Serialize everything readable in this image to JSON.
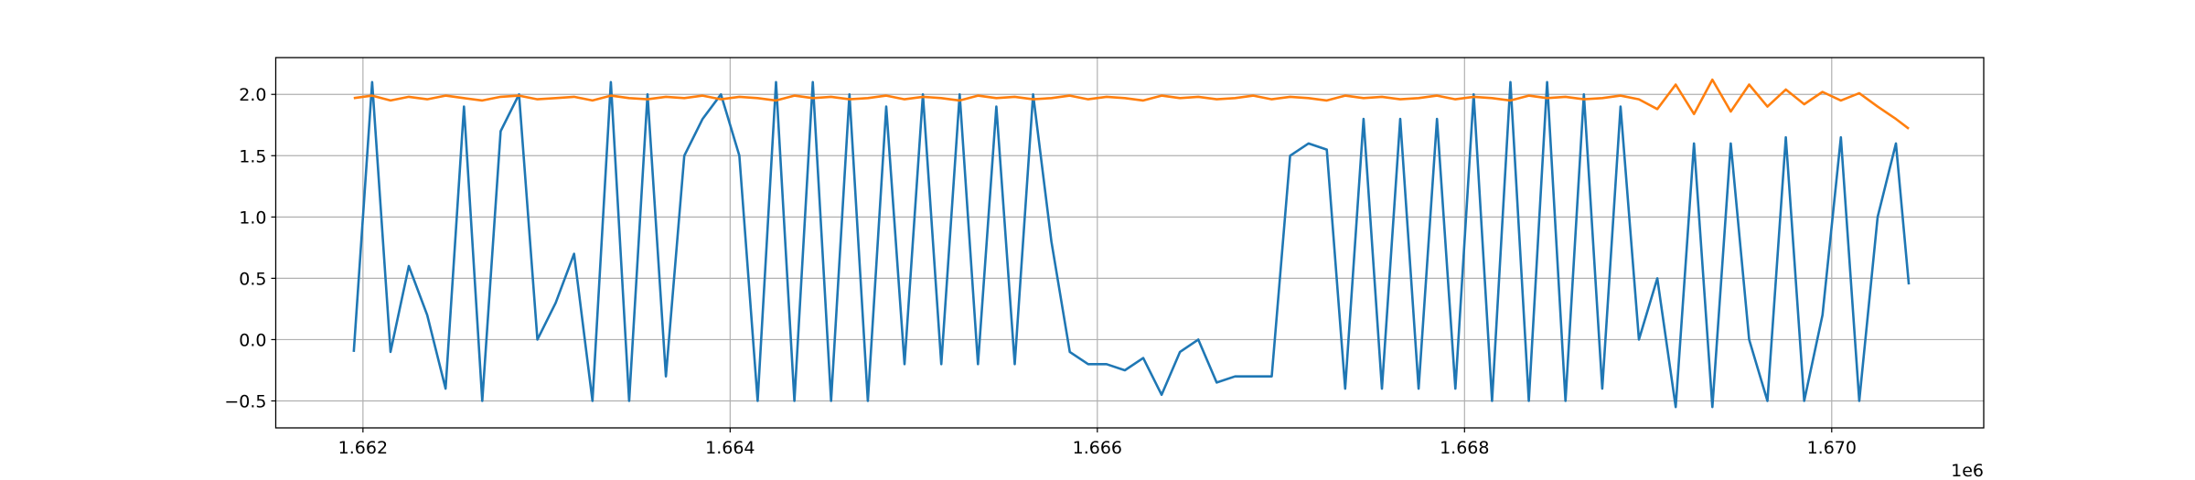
{
  "chart_data": {
    "type": "line",
    "x": [
      1661950,
      1662050,
      1662150,
      1662250,
      1662350,
      1662450,
      1662550,
      1662650,
      1662750,
      1662850,
      1662950,
      1663050,
      1663150,
      1663250,
      1663350,
      1663450,
      1663550,
      1663650,
      1663750,
      1663850,
      1663950,
      1664050,
      1664150,
      1664250,
      1664350,
      1664450,
      1664550,
      1664650,
      1664750,
      1664850,
      1664950,
      1665050,
      1665150,
      1665250,
      1665350,
      1665450,
      1665550,
      1665650,
      1665750,
      1665850,
      1665950,
      1666050,
      1666150,
      1666250,
      1666350,
      1666450,
      1666550,
      1666650,
      1666750,
      1666850,
      1666950,
      1667050,
      1667150,
      1667250,
      1667350,
      1667450,
      1667550,
      1667650,
      1667750,
      1667850,
      1667950,
      1668050,
      1668150,
      1668250,
      1668350,
      1668450,
      1668550,
      1668650,
      1668750,
      1668850,
      1668950,
      1669050,
      1669150,
      1669250,
      1669350,
      1669450,
      1669550,
      1669650,
      1669750,
      1669850,
      1669950,
      1670050,
      1670150,
      1670250,
      1670350,
      1670420
    ],
    "series": [
      {
        "color": "#1f77b4",
        "values": [
          -0.1,
          2.1,
          -0.1,
          0.6,
          0.2,
          -0.4,
          1.9,
          -0.5,
          1.7,
          2.0,
          0.0,
          0.3,
          0.7,
          -0.5,
          2.1,
          -0.5,
          2.0,
          -0.3,
          1.5,
          1.8,
          2.0,
          1.5,
          -0.5,
          2.1,
          -0.5,
          2.1,
          -0.5,
          2.0,
          -0.5,
          1.9,
          -0.2,
          2.0,
          -0.2,
          2.0,
          -0.2,
          1.9,
          -0.2,
          2.0,
          0.8,
          -0.1,
          -0.2,
          -0.2,
          -0.25,
          -0.15,
          -0.45,
          -0.1,
          0.0,
          -0.35,
          -0.3,
          -0.3,
          -0.3,
          1.5,
          1.6,
          1.55,
          -0.4,
          1.8,
          -0.4,
          1.8,
          -0.4,
          1.8,
          -0.4,
          2.0,
          -0.5,
          2.1,
          -0.5,
          2.1,
          -0.5,
          2.0,
          -0.4,
          1.9,
          0.0,
          0.5,
          -0.55,
          1.6,
          -0.55,
          1.6,
          0.0,
          -0.5,
          1.65,
          -0.5,
          0.2,
          1.65,
          -0.5,
          1.0,
          1.6,
          0.45
        ]
      },
      {
        "color": "#ff7f0e",
        "values": [
          1.97,
          1.99,
          1.95,
          1.98,
          1.96,
          1.99,
          1.97,
          1.95,
          1.98,
          1.99,
          1.96,
          1.97,
          1.98,
          1.95,
          1.99,
          1.97,
          1.96,
          1.98,
          1.97,
          1.99,
          1.96,
          1.98,
          1.97,
          1.95,
          1.99,
          1.97,
          1.98,
          1.96,
          1.97,
          1.99,
          1.96,
          1.98,
          1.97,
          1.95,
          1.99,
          1.97,
          1.98,
          1.96,
          1.97,
          1.99,
          1.96,
          1.98,
          1.97,
          1.95,
          1.99,
          1.97,
          1.98,
          1.96,
          1.97,
          1.99,
          1.96,
          1.98,
          1.97,
          1.95,
          1.99,
          1.97,
          1.98,
          1.96,
          1.97,
          1.99,
          1.96,
          1.98,
          1.97,
          1.95,
          1.99,
          1.97,
          1.98,
          1.96,
          1.97,
          1.99,
          1.96,
          1.88,
          2.08,
          1.84,
          2.12,
          1.86,
          2.08,
          1.9,
          2.04,
          1.92,
          2.02,
          1.95,
          2.01,
          1.9,
          1.8,
          1.72
        ]
      }
    ],
    "xlim": [
      1661525,
      1670828
    ],
    "ylim": [
      -0.72,
      2.3
    ],
    "xticks": [
      {
        "value": 1662000,
        "label": "1.662"
      },
      {
        "value": 1664000,
        "label": "1.664"
      },
      {
        "value": 1666000,
        "label": "1.666"
      },
      {
        "value": 1668000,
        "label": "1.668"
      },
      {
        "value": 1670000,
        "label": "1.670"
      }
    ],
    "x_offset_label": "1e6",
    "yticks": [
      {
        "value": -0.5,
        "label": "−0.5"
      },
      {
        "value": 0,
        "label": "0.0"
      },
      {
        "value": 0.5,
        "label": "0.5"
      },
      {
        "value": 1,
        "label": "1.0"
      },
      {
        "value": 1.5,
        "label": "1.5"
      },
      {
        "value": 2,
        "label": "2.0"
      }
    ],
    "grid": true
  }
}
